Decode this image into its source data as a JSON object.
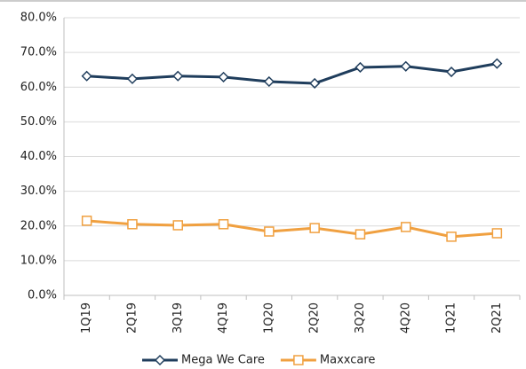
{
  "chart_data": {
    "type": "line",
    "categories": [
      "1Q19",
      "2Q19",
      "3Q19",
      "4Q19",
      "1Q20",
      "2Q20",
      "3Q20",
      "4Q20",
      "1Q21",
      "2Q21"
    ],
    "series": [
      {
        "name": "Mega We Care",
        "color": "#1f3d5c",
        "marker": "diamond",
        "values": [
          63.2,
          62.4,
          63.2,
          62.9,
          61.6,
          61.1,
          65.7,
          66.0,
          64.4,
          66.8
        ]
      },
      {
        "name": "Maxxcare",
        "color": "#f0a040",
        "marker": "square",
        "values": [
          21.5,
          20.5,
          20.2,
          20.5,
          18.4,
          19.4,
          17.6,
          19.7,
          16.9,
          17.9
        ]
      }
    ],
    "ylim": [
      0,
      80
    ],
    "yticks": [
      {
        "value": 0,
        "label": "0.0%"
      },
      {
        "value": 10,
        "label": "10.0%"
      },
      {
        "value": 20,
        "label": "20.0%"
      },
      {
        "value": 30,
        "label": "30.0%"
      },
      {
        "value": 40,
        "label": "40.0%"
      },
      {
        "value": 50,
        "label": "50.0%"
      },
      {
        "value": 60,
        "label": "60.0%"
      },
      {
        "value": 70,
        "label": "70.0%"
      },
      {
        "value": 80,
        "label": "80.0%"
      }
    ],
    "grid": true
  }
}
